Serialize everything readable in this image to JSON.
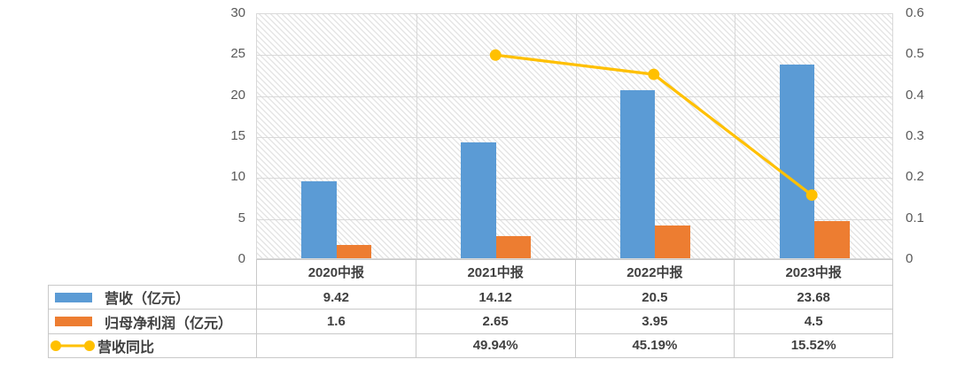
{
  "chart_data": {
    "type": "combo",
    "title": "",
    "categories": [
      "2020中报",
      "2021中报",
      "2022中报",
      "2023中报"
    ],
    "series": [
      {
        "name": "营收（亿元）",
        "type": "bar",
        "axis": "left",
        "color": "#5B9BD5",
        "values": [
          9.42,
          14.12,
          20.5,
          23.68
        ],
        "labels": [
          "9.42",
          "14.12",
          "20.5",
          "23.68"
        ]
      },
      {
        "name": "归母净利润（亿元）",
        "type": "bar",
        "axis": "left",
        "color": "#ED7D31",
        "values": [
          1.6,
          2.65,
          3.95,
          4.5
        ],
        "labels": [
          "1.6",
          "2.65",
          "3.95",
          "4.5"
        ]
      },
      {
        "name": "营收同比",
        "type": "line",
        "axis": "right",
        "color": "#FFC000",
        "values": [
          null,
          0.4994,
          0.4519,
          0.1552
        ],
        "labels": [
          "",
          "49.94%",
          "45.19%",
          "15.52%"
        ]
      }
    ],
    "left_axis": {
      "min": 0,
      "max": 30,
      "step": 5,
      "ticks": [
        "30",
        "25",
        "20",
        "15",
        "10",
        "5",
        "0"
      ]
    },
    "right_axis": {
      "min": 0,
      "max": 0.6,
      "step": 0.1,
      "ticks": [
        "0.6",
        "0.5",
        "0.4",
        "0.3",
        "0.2",
        "0.1",
        "0"
      ]
    },
    "grid": true,
    "plot_background": "diagonal-hatch",
    "legend_position": "table-left"
  },
  "colors": {
    "bar_revenue": "#5B9BD5",
    "bar_profit": "#ED7D31",
    "line_yoy": "#FFC000",
    "gridline": "#D9D9D9",
    "table_border": "#C9C9C9",
    "tick_text": "#595959",
    "table_text": "#404040",
    "background": "#FFFFFF"
  }
}
